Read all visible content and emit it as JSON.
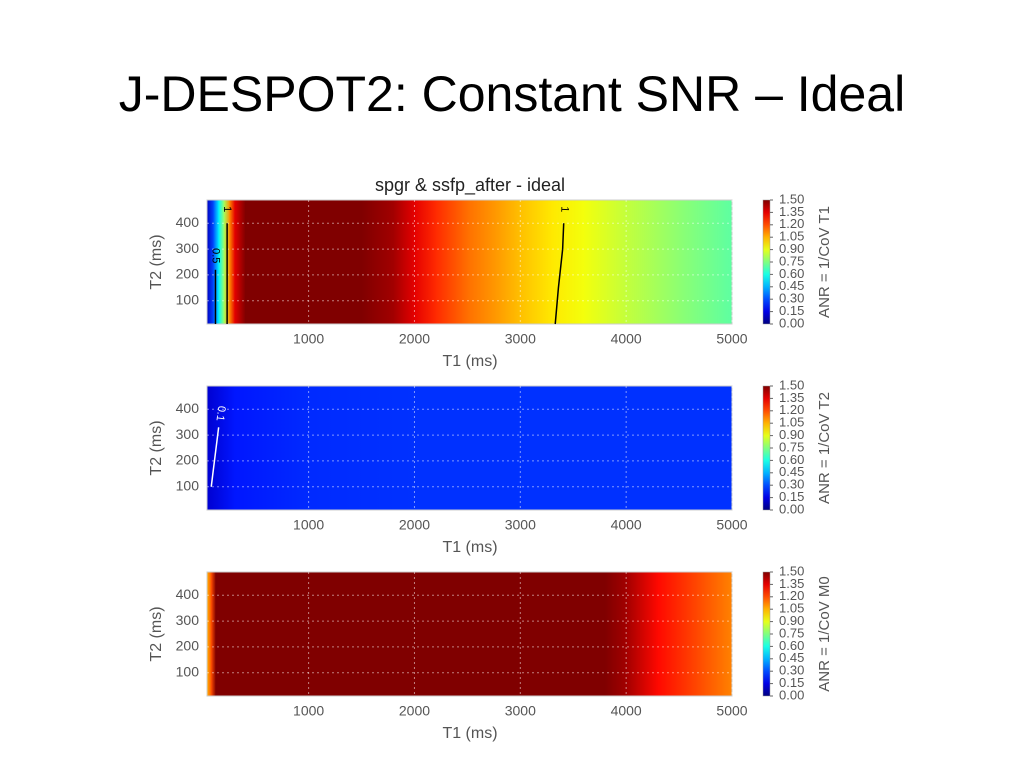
{
  "slide": {
    "title": "J-DESPOT2: Constant SNR – Ideal"
  },
  "chart_data": [
    {
      "type": "heatmap",
      "title": "spgr & ssfp_after - ideal",
      "x_label": "T1 (ms)",
      "y_label": "T2 (ms)",
      "colorbar_label": "ANR = 1/CoV T1",
      "colormap": "jet",
      "clim": [
        0,
        1.5
      ],
      "grid": true,
      "xlim": [
        40,
        5000
      ],
      "ylim": [
        10,
        490
      ],
      "xticks": [
        1000,
        2000,
        3000,
        4000,
        5000
      ],
      "yticks": [
        100,
        200,
        300,
        400
      ],
      "cticks": [
        {
          "value": 0,
          "label": "0.00"
        },
        {
          "value": 0.15,
          "label": "0.15"
        },
        {
          "value": 0.3,
          "label": "0.30"
        },
        {
          "value": 0.45,
          "label": "0.45"
        },
        {
          "value": 0.6,
          "label": "0.60"
        },
        {
          "value": 0.75,
          "label": "0.75"
        },
        {
          "value": 0.9,
          "label": "0.90"
        },
        {
          "value": 1.05,
          "label": "1.05"
        },
        {
          "value": 1.2,
          "label": "1.20"
        },
        {
          "value": 1.35,
          "label": "1.35"
        },
        {
          "value": 1.5,
          "label": "1.50"
        }
      ],
      "x": [
        40,
        100,
        150,
        200,
        250,
        300,
        400,
        500,
        1500,
        1800,
        2000,
        2200,
        2500,
        2800,
        3000,
        3300,
        3600,
        4000,
        4500,
        5000
      ],
      "values": [
        0.1,
        0.3,
        0.55,
        0.8,
        1.1,
        1.35,
        1.5,
        1.5,
        1.5,
        1.45,
        1.35,
        1.25,
        1.15,
        1.08,
        1.03,
        0.97,
        0.92,
        0.85,
        0.77,
        0.7
      ],
      "contours": [
        {
          "label": "1",
          "x": [
            3330,
            3360,
            3400,
            3410
          ],
          "y": [
            10,
            150,
            300,
            400
          ]
        },
        {
          "label": "1",
          "x": [
            230,
            230
          ],
          "y": [
            10,
            400
          ]
        },
        {
          "label": "0.5",
          "x": [
            120,
            120
          ],
          "y": [
            10,
            220
          ]
        }
      ]
    },
    {
      "type": "heatmap",
      "x_label": "T1 (ms)",
      "y_label": "T2 (ms)",
      "colorbar_label": "ANR = 1/CoV T2",
      "colormap": "jet",
      "clim": [
        0,
        1.5
      ],
      "grid": true,
      "xlim": [
        40,
        5000
      ],
      "ylim": [
        10,
        490
      ],
      "xticks": [
        1000,
        2000,
        3000,
        4000,
        5000
      ],
      "yticks": [
        100,
        200,
        300,
        400
      ],
      "cticks": [
        {
          "value": 0,
          "label": "0.00"
        },
        {
          "value": 0.15,
          "label": "0.15"
        },
        {
          "value": 0.3,
          "label": "0.30"
        },
        {
          "value": 0.45,
          "label": "0.45"
        },
        {
          "value": 0.6,
          "label": "0.60"
        },
        {
          "value": 0.75,
          "label": "0.75"
        },
        {
          "value": 0.9,
          "label": "0.90"
        },
        {
          "value": 1.05,
          "label": "1.05"
        },
        {
          "value": 1.2,
          "label": "1.20"
        },
        {
          "value": 1.35,
          "label": "1.35"
        },
        {
          "value": 1.5,
          "label": "1.50"
        }
      ],
      "x": [
        40,
        300,
        1000,
        2000,
        3000,
        4000,
        5000
      ],
      "values": [
        0.12,
        0.22,
        0.25,
        0.26,
        0.26,
        0.26,
        0.26
      ],
      "contours": [
        {
          "label": "0.1",
          "x": [
            80,
            150
          ],
          "y": [
            100,
            330
          ]
        }
      ]
    },
    {
      "type": "heatmap",
      "x_label": "T1 (ms)",
      "y_label": "T2 (ms)",
      "colorbar_label": "ANR = 1/CoV M0",
      "colormap": "jet",
      "clim": [
        0,
        1.5
      ],
      "grid": true,
      "xlim": [
        40,
        5000
      ],
      "ylim": [
        10,
        490
      ],
      "xticks": [
        1000,
        2000,
        3000,
        4000,
        5000
      ],
      "yticks": [
        100,
        200,
        300,
        400
      ],
      "cticks": [
        {
          "value": 0,
          "label": "0.00"
        },
        {
          "value": 0.15,
          "label": "0.15"
        },
        {
          "value": 0.3,
          "label": "0.30"
        },
        {
          "value": 0.45,
          "label": "0.45"
        },
        {
          "value": 0.6,
          "label": "0.60"
        },
        {
          "value": 0.75,
          "label": "0.75"
        },
        {
          "value": 0.9,
          "label": "0.90"
        },
        {
          "value": 1.05,
          "label": "1.05"
        },
        {
          "value": 1.2,
          "label": "1.20"
        },
        {
          "value": 1.35,
          "label": "1.35"
        },
        {
          "value": 1.5,
          "label": "1.50"
        }
      ],
      "x": [
        40,
        80,
        120,
        500,
        3800,
        4000,
        4300,
        4700,
        5000
      ],
      "values": [
        1.05,
        1.2,
        1.5,
        1.5,
        1.5,
        1.45,
        1.3,
        1.2,
        1.12
      ]
    }
  ]
}
